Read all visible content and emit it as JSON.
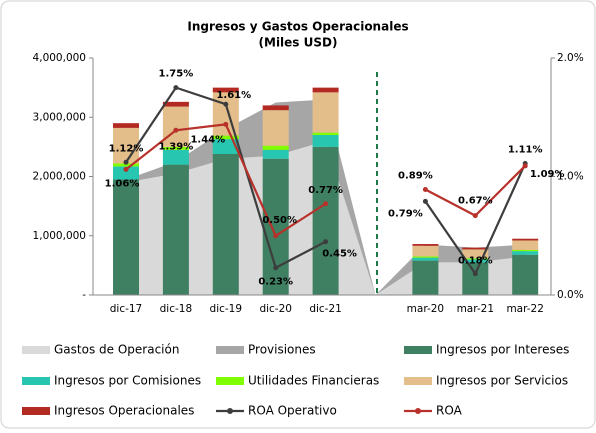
{
  "chart_data": {
    "type": "combo",
    "title": "Ingresos y Gastos Operacionales",
    "subtitle": "(Miles USD)",
    "categories": [
      "dic-17",
      "dic-18",
      "dic-19",
      "dic-20",
      "dic-21",
      null,
      "mar-20",
      "mar-21",
      "mar-22"
    ],
    "ylim": [
      0,
      4000000
    ],
    "yticks": [
      {
        "value": 0,
        "label": "-"
      },
      {
        "value": 1000000,
        "label": "1,000,000"
      },
      {
        "value": 2000000,
        "label": "2,000,000"
      },
      {
        "value": 3000000,
        "label": "3,000,000"
      },
      {
        "value": 4000000,
        "label": "4,000,000"
      }
    ],
    "y2lim": [
      0,
      2
    ],
    "y2ticks": [
      {
        "value": 0,
        "label": "0.0%"
      },
      {
        "value": 1,
        "label": "1.0%"
      },
      {
        "value": 2,
        "label": "2.0%"
      }
    ],
    "series": [
      {
        "name": "Gastos de Operación",
        "type": "area",
        "color": "#d9d9d9",
        "values": [
          1900000,
          2050000,
          2300000,
          2350000,
          2600000,
          0,
          550000,
          550000,
          650000
        ]
      },
      {
        "name": "Provisiones",
        "type": "area",
        "color": "#a6a6a6",
        "values": [
          50000,
          200000,
          500000,
          900000,
          700000,
          0,
          300000,
          250000,
          200000
        ]
      },
      {
        "name": "Ingresos por Intereses",
        "type": "bar",
        "color": "#3f7f62",
        "values": [
          1950000,
          2200000,
          2380000,
          2300000,
          2500000,
          null,
          580000,
          550000,
          680000
        ]
      },
      {
        "name": "Ingresos por Comisiones",
        "type": "bar",
        "color": "#26c6b0",
        "values": [
          220000,
          250000,
          250000,
          150000,
          200000,
          null,
          50000,
          50000,
          60000
        ]
      },
      {
        "name": "Utilidades Financieras",
        "type": "bar",
        "color": "#7fff00",
        "values": [
          50000,
          50000,
          60000,
          70000,
          40000,
          null,
          20000,
          20000,
          20000
        ]
      },
      {
        "name": "Ingresos por Servicios",
        "type": "bar",
        "color": "#e3bd8a",
        "values": [
          600000,
          680000,
          730000,
          600000,
          680000,
          null,
          180000,
          150000,
          160000
        ]
      },
      {
        "name": "Ingresos Operacionales",
        "type": "bar",
        "color": "#b22a22",
        "values": [
          80000,
          80000,
          80000,
          80000,
          80000,
          null,
          30000,
          30000,
          30000
        ]
      },
      {
        "name": "ROA Operativo",
        "type": "line",
        "axis": "y2",
        "color": "#3d3d3d",
        "values": [
          1.12,
          1.75,
          1.61,
          0.23,
          0.45,
          null,
          0.79,
          0.18,
          1.11
        ],
        "value_labels": [
          "1.12%",
          "1.75%",
          "1.61%",
          "0.23%",
          "0.45%",
          null,
          "0.79%",
          "0.18%",
          "1.11%"
        ]
      },
      {
        "name": "ROA",
        "type": "line",
        "axis": "y2",
        "color": "#b8312a",
        "values": [
          1.06,
          1.39,
          1.44,
          0.5,
          0.77,
          null,
          0.89,
          0.67,
          1.09
        ],
        "value_labels": [
          "1.06%",
          "1.39%",
          "1.44%",
          "0.50%",
          "0.77%",
          null,
          "0.89%",
          "0.67%",
          "1.09%"
        ]
      }
    ]
  }
}
